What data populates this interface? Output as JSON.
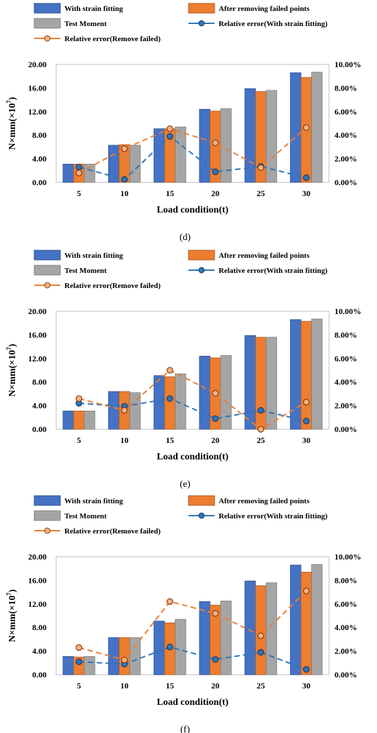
{
  "legend": {
    "with_strain_fitting": "With strain fitting",
    "after_removing": "After removing failed points",
    "test_moment": "Test Moment",
    "rel_err_strain": "Relative error(With strain fitting)",
    "rel_err_removed": "Relative error(Remove failed)"
  },
  "colors": {
    "blue_bar": "#4472C4",
    "orange_bar": "#ED7D31",
    "gray_bar": "#A5A5A5",
    "blue_line": "#2E75B6",
    "orange_line": "#ED7D31",
    "marker_blue_fill": "#2E75B6",
    "marker_orange_fill": "#F4B183"
  },
  "axis": {
    "ylabel_main": "N×mm(×10",
    "ylabel_exp": "7",
    "ylabel_close": ")",
    "xlabel": "Load condition(t)",
    "yticks_left": [
      "0.00",
      "4.00",
      "8.00",
      "12.00",
      "16.00",
      "20.00"
    ],
    "yticks_right": [
      "0.00%",
      "2.00%",
      "4.00%",
      "6.00%",
      "8.00%",
      "10.00%"
    ]
  },
  "chart_data": [
    {
      "type": "bar",
      "label": "(d)",
      "categories": [
        "5",
        "10",
        "15",
        "20",
        "25",
        "30"
      ],
      "ylim": [
        0,
        20
      ],
      "y2lim": [
        0,
        10
      ],
      "series": [
        {
          "name": "With strain fitting",
          "kind": "bar",
          "axis": "left",
          "values": [
            3.1,
            6.3,
            9.1,
            12.4,
            15.9,
            18.6
          ]
        },
        {
          "name": "After removing failed points",
          "kind": "bar",
          "axis": "left",
          "values": [
            3.1,
            6.4,
            9.1,
            12.1,
            15.4,
            17.8
          ]
        },
        {
          "name": "Test Moment",
          "kind": "bar",
          "axis": "left",
          "values": [
            3.1,
            6.3,
            9.4,
            12.5,
            15.6,
            18.7
          ]
        },
        {
          "name": "Relative error(With strain fitting)",
          "kind": "line",
          "axis": "right",
          "values": [
            1.3,
            0.25,
            3.9,
            0.9,
            1.35,
            0.4
          ]
        },
        {
          "name": "Relative error(Remove failed)",
          "kind": "line",
          "axis": "right",
          "values": [
            0.8,
            2.85,
            4.55,
            3.35,
            1.25,
            4.65
          ]
        }
      ]
    },
    {
      "type": "bar",
      "label": "(e)",
      "categories": [
        "5",
        "10",
        "15",
        "20",
        "25",
        "30"
      ],
      "ylim": [
        0,
        20
      ],
      "y2lim": [
        0,
        10
      ],
      "series": [
        {
          "name": "With strain fitting",
          "kind": "bar",
          "axis": "left",
          "values": [
            3.1,
            6.4,
            9.1,
            12.4,
            15.9,
            18.6
          ]
        },
        {
          "name": "After removing failed points",
          "kind": "bar",
          "axis": "left",
          "values": [
            3.1,
            6.4,
            8.9,
            12.1,
            15.6,
            18.3
          ]
        },
        {
          "name": "Test Moment",
          "kind": "bar",
          "axis": "left",
          "values": [
            3.1,
            6.2,
            9.4,
            12.5,
            15.6,
            18.7
          ]
        },
        {
          "name": "Relative error(With strain fitting)",
          "kind": "line",
          "axis": "right",
          "values": [
            2.2,
            1.95,
            2.6,
            0.9,
            1.6,
            0.7
          ]
        },
        {
          "name": "Relative error(Remove failed)",
          "kind": "line",
          "axis": "right",
          "values": [
            2.6,
            1.6,
            5.0,
            3.05,
            0.0,
            2.3
          ]
        }
      ]
    },
    {
      "type": "bar",
      "label": "(f)",
      "categories": [
        "5",
        "10",
        "15",
        "20",
        "25",
        "30"
      ],
      "ylim": [
        0,
        20
      ],
      "y2lim": [
        0,
        10
      ],
      "series": [
        {
          "name": "With strain fitting",
          "kind": "bar",
          "axis": "left",
          "values": [
            3.1,
            6.3,
            9.1,
            12.4,
            15.9,
            18.6
          ]
        },
        {
          "name": "After removing failed points",
          "kind": "bar",
          "axis": "left",
          "values": [
            3.0,
            6.3,
            8.8,
            11.8,
            15.1,
            17.4
          ]
        },
        {
          "name": "Test Moment",
          "kind": "bar",
          "axis": "left",
          "values": [
            3.1,
            6.3,
            9.4,
            12.5,
            15.6,
            18.7
          ]
        },
        {
          "name": "Relative error(With strain fitting)",
          "kind": "line",
          "axis": "right",
          "values": [
            1.1,
            0.9,
            2.35,
            1.3,
            1.9,
            0.45
          ]
        },
        {
          "name": "Relative error(Remove failed)",
          "kind": "line",
          "axis": "right",
          "values": [
            2.3,
            1.25,
            6.2,
            5.2,
            3.3,
            7.1
          ]
        }
      ]
    }
  ]
}
